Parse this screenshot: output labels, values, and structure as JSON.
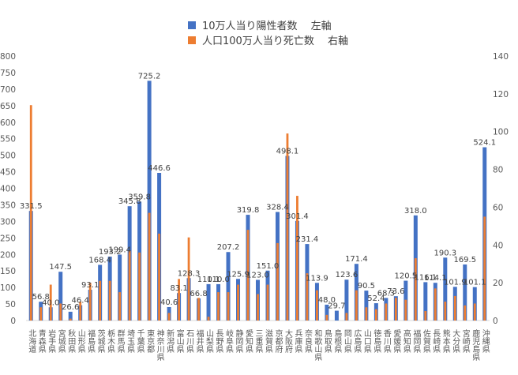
{
  "legend": {
    "positive_label": "10万人当り陽性者数　 左軸",
    "death_label": "人口100万人当り死亡数　 右軸"
  },
  "colors": {
    "positive": "#4472C4",
    "death": "#ED7D31",
    "axis_text": "#595959",
    "grid": "#D9D9D9"
  },
  "chart_data": {
    "type": "bar",
    "title": "",
    "xlabel": "",
    "ylabel": "",
    "ylim": [
      0,
      800
    ],
    "y2lim": [
      0,
      140
    ],
    "y_ticks": [
      "0",
      "50",
      "100",
      "150",
      "200",
      "250",
      "300",
      "350",
      "400",
      "450",
      "500",
      "550",
      "600",
      "650",
      "700",
      "750",
      "800"
    ],
    "y2_ticks": [
      "0",
      "20",
      "40",
      "60",
      "80",
      "100",
      "120",
      "140"
    ],
    "grid": false,
    "legend_position": "top",
    "categories": [
      "北海道",
      "青森県",
      "岩手県",
      "宮城県",
      "秋田県",
      "山形県",
      "福島県",
      "茨城県",
      "栃木県",
      "群馬県",
      "埼玉県",
      "千葉県",
      "東京都",
      "神奈川県",
      "新潟県",
      "富山県",
      "石川県",
      "福井県",
      "山梨県",
      "長野県",
      "岐阜県",
      "静岡県",
      "愛知県",
      "三重県",
      "滋賀県",
      "京都府",
      "大阪府",
      "兵庫県",
      "奈良県",
      "和歌山県",
      "鳥取県",
      "島根県",
      "岡山県",
      "広島県",
      "山口県",
      "徳島県",
      "香川県",
      "愛媛県",
      "高知県",
      "福岡県",
      "佐賀県",
      "長崎県",
      "熊本県",
      "大分県",
      "宮崎県",
      "鹿児島県",
      "沖縄県"
    ],
    "series": [
      {
        "name": "10万人当り陽性者数　 左軸",
        "axis": "left",
        "values": [
          331.5,
          56.8,
          40.0,
          147.5,
          26.6,
          46.4,
          93.1,
          168.4,
          193.2,
          199.4,
          345.8,
          359.8,
          725.2,
          446.6,
          40.6,
          83.1,
          128.3,
          66.8,
          110.1,
          110.0,
          207.2,
          125.9,
          319.8,
          123.0,
          151.0,
          328.4,
          498.1,
          301.4,
          231.4,
          113.9,
          48.0,
          29.7,
          123.6,
          171.4,
          90.5,
          52.4,
          68.3,
          73.6,
          120.5,
          318.0,
          116.1,
          114.1,
          190.3,
          101.9,
          169.5,
          101.1,
          524.1
        ],
        "labels": [
          "331.5",
          "56.8",
          "40.0",
          "147.5",
          "26.6",
          "46.4",
          "93.1",
          "168.4",
          "193.2",
          "199.4",
          "345.8",
          "359.8",
          "725.2",
          "446.6",
          "40.6",
          "83.1",
          "128.3",
          "66.8",
          "110.1",
          "110.0",
          "207.2",
          "125.9",
          "319.8",
          "123.0",
          "151.0",
          "328.4",
          "498.1",
          "301.4",
          "231.4",
          "113.9",
          "48.0",
          "29.7",
          "123.6",
          "171.4",
          "90.5",
          "52.4",
          "68.3",
          "73.6",
          "120.5",
          "318.0",
          "116.1",
          "114.1",
          "190.3",
          "101.9",
          "169.5",
          "101.1",
          "524.1"
        ]
      },
      {
        "name": "人口100万人当り死亡数　 右軸",
        "axis": "right",
        "values": [
          114,
          7,
          19,
          9,
          1,
          10,
          20,
          21,
          21,
          15,
          37,
          36,
          57,
          46,
          4,
          22,
          44,
          12,
          2,
          15,
          15,
          19,
          48,
          14,
          19,
          41,
          99,
          66,
          25,
          16,
          3,
          0,
          4,
          16,
          7,
          6,
          9,
          12,
          11,
          33,
          5,
          17,
          10,
          13,
          8,
          9,
          55
        ]
      }
    ]
  }
}
